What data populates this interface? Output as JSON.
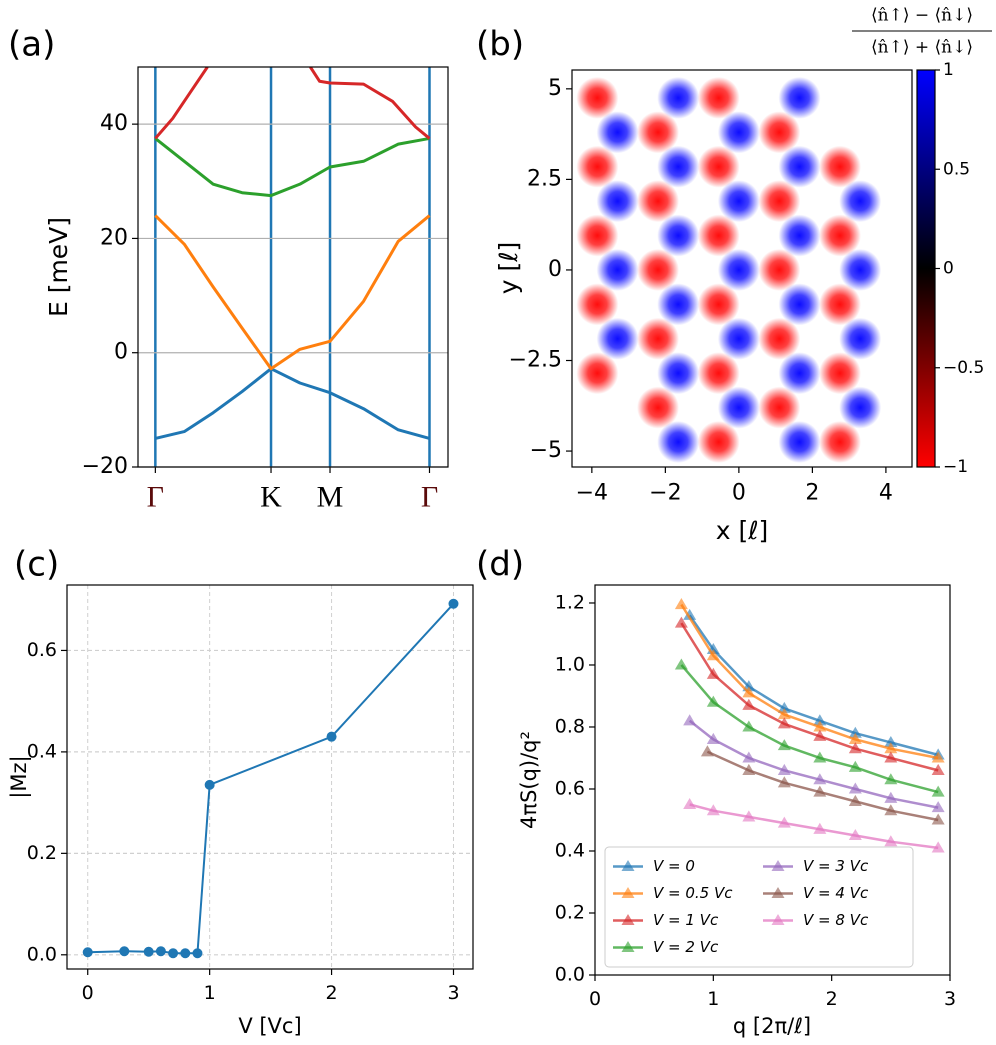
{
  "chart_data": [
    {
      "type": "line",
      "panel_label": "(a)",
      "ylabel": "E [meV]",
      "x": [
        0,
        0.25,
        0.5,
        0.75,
        1,
        1.25,
        1.51,
        1.8,
        2.1,
        2.37
      ],
      "xlim": [
        -0.15,
        2.53
      ],
      "ylim": [
        -20,
        50
      ],
      "xticks": [
        {
          "value": 0,
          "label": "Γ"
        },
        {
          "value": 1,
          "label": "K"
        },
        {
          "value": 1.51,
          "label": "M"
        },
        {
          "value": 2.37,
          "label": "Γ"
        }
      ],
      "yticks": [
        {
          "value": -20,
          "label": "−20"
        },
        0,
        20,
        40
      ],
      "xgrid_color": "#1f77b4",
      "ygrid_color": "#b0b0b0",
      "series": [
        {
          "color": "#1f77b4",
          "values": [
            -15,
            -13.8,
            -10.5,
            -6.8,
            -2.8,
            -5.3,
            -7,
            -9.8,
            -13.5,
            -15
          ]
        },
        {
          "color": "#ff7f0e",
          "values": [
            24,
            19,
            11.5,
            4.3,
            -2.8,
            0.6,
            2,
            9,
            19.5,
            24
          ]
        },
        {
          "color": "#2ca02c",
          "values": [
            37.5,
            33.5,
            29.5,
            28,
            27.5,
            29.5,
            32.5,
            33.5,
            36.5,
            37.5
          ]
        },
        {
          "color": "#d62728",
          "x": [
            0,
            0.15,
            0.3,
            0.45,
            0.9,
            1.34,
            1.42,
            1.51,
            1.8,
            2.05,
            2.25,
            2.37
          ],
          "values": [
            37.5,
            41,
            45.5,
            50,
            null,
            50,
            47.5,
            47.2,
            47,
            44,
            39.5,
            37.5
          ]
        }
      ]
    },
    {
      "type": "heatmap",
      "panel_label": "(b)",
      "xlabel": "x [ℓ]",
      "ylabel": "y [ℓ]",
      "xlim": [
        -4.54,
        4.71
      ],
      "ylim": [
        -5.44,
        5.52
      ],
      "xticks": [
        {
          "value": -4,
          "label": "−4"
        },
        {
          "value": -2,
          "label": "−2"
        },
        0,
        2,
        4
      ],
      "yticks": [
        {
          "value": -5,
          "label": "−5"
        },
        {
          "value": -2.5,
          "label": "−2.5"
        },
        0,
        2.5,
        5
      ],
      "spots": {
        "x": [
          -3.85,
          -0.55,
          -1.65,
          1.65,
          -3.3,
          0,
          -2.2,
          1.1,
          -3.85,
          -0.55,
          2.75,
          -1.65,
          1.65,
          -3.3,
          0,
          3.3,
          -2.2,
          1.1,
          -3.85,
          -0.55,
          2.75,
          -1.65,
          1.65,
          -3.3,
          0,
          3.3,
          -2.2,
          1.1,
          -3.85,
          -0.55,
          2.75,
          -1.65,
          1.65,
          -3.3,
          0,
          3.3,
          -2.2,
          1.1,
          -3.85,
          -0.55,
          2.75,
          -1.65,
          1.65,
          0,
          3.3,
          -2.2,
          1.1,
          -1.65,
          1.65,
          -0.55,
          2.75
        ],
        "y": [
          4.75,
          4.75,
          4.75,
          4.75,
          3.8,
          3.8,
          3.8,
          3.8,
          2.85,
          2.85,
          2.85,
          2.85,
          2.85,
          1.9,
          1.9,
          1.9,
          1.9,
          1.9,
          0.95,
          0.95,
          0.95,
          0.95,
          0.95,
          0,
          0,
          0,
          0,
          0,
          -0.95,
          -0.95,
          -0.95,
          -0.95,
          -0.95,
          -1.9,
          -1.9,
          -1.9,
          -1.9,
          -1.9,
          -2.85,
          -2.85,
          -2.85,
          -2.85,
          -2.85,
          -3.8,
          -3.8,
          -3.8,
          -3.8,
          -4.75,
          -4.75,
          -4.75,
          -4.75
        ],
        "values": [
          -1,
          -1,
          1,
          1,
          1,
          1,
          -1,
          -1,
          -1,
          -1,
          -1,
          1,
          1,
          1,
          1,
          1,
          -1,
          -1,
          -1,
          -1,
          -1,
          1,
          1,
          1,
          1,
          1,
          -1,
          -1,
          -1,
          -1,
          -1,
          1,
          1,
          1,
          1,
          1,
          -1,
          -1,
          -1,
          -1,
          -1,
          1,
          1,
          1,
          1,
          -1,
          -1,
          1,
          1,
          -1,
          -1
        ]
      },
      "colorbar": {
        "lim": [
          -1,
          1
        ],
        "cmap": [
          "#ff0000",
          "#000000",
          "#0000ff"
        ],
        "ticks": [
          {
            "value": -1,
            "label": "−1"
          },
          {
            "value": -0.5,
            "label": "−0.5"
          },
          0,
          0.5,
          1
        ],
        "label": {
          "numerator": "⟨n̂↑⟩ − ⟨n̂↓⟩",
          "denominator": "⟨n̂↑⟩ + ⟨n̂↓⟩"
        }
      }
    },
    {
      "type": "line",
      "panel_label": "(c)",
      "xlabel": "V [Vc]",
      "ylabel": "|Mz|",
      "x": [
        0,
        0.3,
        0.5,
        0.6,
        0.7,
        0.8,
        0.9,
        1,
        2,
        3
      ],
      "xlim": [
        -0.17,
        3.16
      ],
      "ylim": [
        -0.028,
        0.729
      ],
      "xticks": [
        0,
        1,
        2,
        3
      ],
      "yticks": [
        {
          "value": 0,
          "label": "0.0"
        },
        0.2,
        0.4,
        0.6
      ],
      "xgrid_color": "#d0d0d0",
      "ygrid_color": "#d0d0d0",
      "grid_dashed": true,
      "marker": "o",
      "series": [
        {
          "color": "#1f77b4",
          "values": [
            0.005,
            0.007,
            0.006,
            0.007,
            0.003,
            0.003,
            0.003,
            0.335,
            0.43,
            0.692
          ]
        }
      ]
    },
    {
      "type": "line",
      "panel_label": "(d)",
      "xlabel": "q [2π/ℓ]",
      "ylabel": "4πS(q)/q²",
      "xlim": [
        0,
        3
      ],
      "ylim": [
        0,
        1.258
      ],
      "xticks": [
        0,
        1,
        2,
        3
      ],
      "yticks": [
        {
          "value": 0,
          "label": "0.0"
        },
        0.2,
        0.4,
        0.6,
        0.8,
        {
          "value": 1,
          "label": "1.0"
        },
        1.2
      ],
      "marker": "^",
      "legend": "lower left",
      "legend_columns": 2,
      "series": [
        {
          "name": "V = 0",
          "color": "#1f77b4",
          "x": [
            0.8,
            1.0,
            1.3,
            1.6,
            1.9,
            2.2,
            2.5,
            2.9
          ],
          "values": [
            1.16,
            1.05,
            0.93,
            0.86,
            0.82,
            0.78,
            0.75,
            0.71
          ]
        },
        {
          "name": "V = 0.5 Vc",
          "color": "#ff7f0e",
          "x": [
            0.73,
            1.0,
            1.3,
            1.6,
            1.9,
            2.2,
            2.5,
            2.9
          ],
          "values": [
            1.195,
            1.03,
            0.91,
            0.84,
            0.8,
            0.76,
            0.73,
            0.7
          ]
        },
        {
          "name": "V = 1 Vc",
          "color": "#d62728",
          "x": [
            0.73,
            1.0,
            1.3,
            1.6,
            1.9,
            2.2,
            2.5,
            2.9
          ],
          "values": [
            1.135,
            0.97,
            0.87,
            0.81,
            0.77,
            0.73,
            0.7,
            0.66
          ]
        },
        {
          "name": "V = 2 Vc",
          "color": "#2ca02c",
          "x": [
            0.73,
            1.0,
            1.3,
            1.6,
            1.9,
            2.2,
            2.5,
            2.9
          ],
          "values": [
            1.0,
            0.88,
            0.8,
            0.74,
            0.7,
            0.67,
            0.63,
            0.59
          ]
        },
        {
          "name": "V = 3 Vc",
          "color": "#9467bd",
          "x": [
            0.8,
            1.0,
            1.3,
            1.6,
            1.9,
            2.2,
            2.5,
            2.9
          ],
          "values": [
            0.82,
            0.76,
            0.7,
            0.66,
            0.63,
            0.6,
            0.57,
            0.54
          ]
        },
        {
          "name": "V = 4 Vc",
          "color": "#8c564b",
          "x": [
            0.95,
            1.3,
            1.6,
            1.9,
            2.2,
            2.5,
            2.9
          ],
          "values": [
            0.72,
            0.66,
            0.62,
            0.59,
            0.56,
            0.53,
            0.5
          ]
        },
        {
          "name": "V = 8 Vc",
          "color": "#e377c2",
          "x": [
            0.8,
            1.0,
            1.3,
            1.6,
            1.9,
            2.2,
            2.5,
            2.9
          ],
          "values": [
            0.55,
            0.53,
            0.51,
            0.49,
            0.47,
            0.45,
            0.43,
            0.41
          ]
        }
      ]
    }
  ]
}
